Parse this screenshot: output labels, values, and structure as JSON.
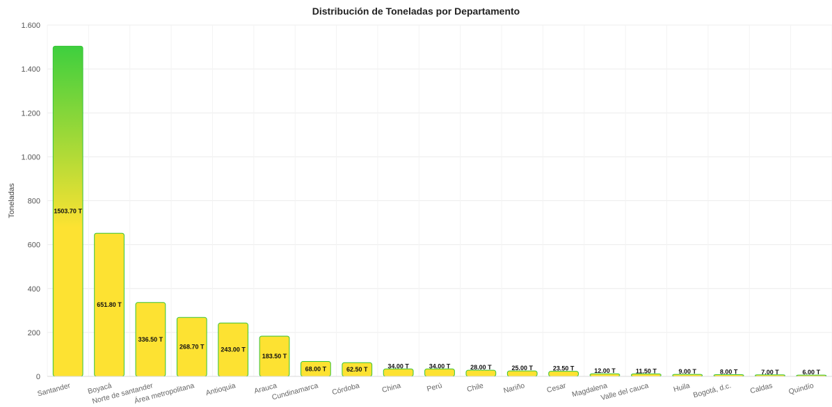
{
  "chart_data": {
    "type": "bar",
    "title": "Distribución de Toneladas por Departamento",
    "ylabel": "Toneladas",
    "xlabel": "",
    "ylim": [
      0,
      1600
    ],
    "yticks": [
      0,
      200,
      400,
      600,
      800,
      1000,
      1200,
      1400,
      1600
    ],
    "ytick_labels": [
      "0",
      "200",
      "400",
      "600",
      "800",
      "1.000",
      "1.200",
      "1.400",
      "1.600"
    ],
    "grid": true,
    "legend": "none",
    "categories": [
      "Santander",
      "Boyacá",
      "Norte de santander",
      "Área metropolitana",
      "Antioquia",
      "Arauca",
      "Cundinamarca",
      "Córdoba",
      "China",
      "Perú",
      "Chile",
      "Nariño",
      "Cesar",
      "Magdalena",
      "Valle del cauca",
      "Huila",
      "Bogotá, d.c.",
      "Caldas",
      "Quindío"
    ],
    "values": [
      1503.7,
      651.8,
      336.5,
      268.7,
      243.0,
      183.5,
      68.0,
      62.5,
      34.0,
      34.0,
      28.0,
      25.0,
      23.5,
      12.0,
      11.5,
      9.0,
      8.0,
      7.0,
      6.0
    ],
    "data_labels": [
      "1503.70 T",
      "651.80 T",
      "336.50 T",
      "268.70 T",
      "243.00 T",
      "183.50 T",
      "68.00 T",
      "62.50 T",
      "34.00 T",
      "34.00 T",
      "28.00 T",
      "25.00 T",
      "23.50 T",
      "12.00 T",
      "11.50 T",
      "9.00 T",
      "8.00 T",
      "7.00 T",
      "6.00 T"
    ],
    "colors": {
      "bar_top": "#3ecf3e",
      "bar_bottom": "#fde232",
      "bar_border": "#36c336",
      "grid": "#ececec"
    }
  }
}
